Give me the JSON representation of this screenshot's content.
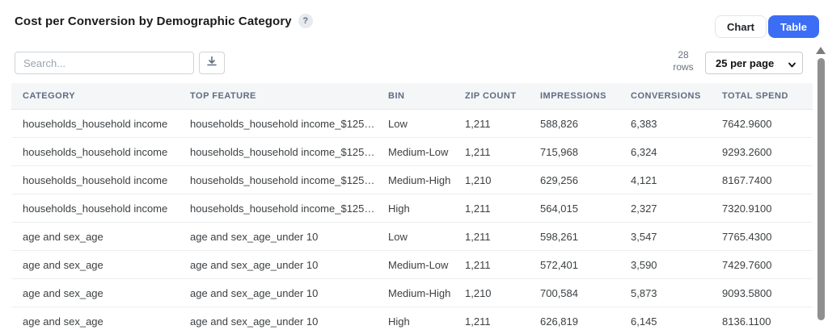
{
  "header": {
    "title": "Cost per Conversion by Demographic Category",
    "help_icon": "?",
    "chart_button_label": "Chart",
    "table_button_label": "Table"
  },
  "toolbar": {
    "search_placeholder": "Search...",
    "download_icon": "download-icon",
    "rows_count_number": "28",
    "rows_count_label": "rows",
    "page_size_selected": "25 per page"
  },
  "colors": {
    "active_toggle_blue": "#3b6ef5",
    "table_header_bg": "#f4f6f8",
    "table_header_text": "#5f6d81",
    "row_border": "#eceef1",
    "scroll_thumb": "#8f8f8f"
  },
  "table": {
    "columns": [
      "CATEGORY",
      "TOP FEATURE",
      "BIN",
      "ZIP COUNT",
      "IMPRESSIONS",
      "CONVERSIONS",
      "TOTAL SPEND"
    ],
    "rows": [
      [
        "households_household income",
        "households_household income_$125,…",
        "Low",
        "1,211",
        "588,826",
        "6,383",
        "7642.9600"
      ],
      [
        "households_household income",
        "households_household income_$125,…",
        "Medium-Low",
        "1,211",
        "715,968",
        "6,324",
        "9293.2600"
      ],
      [
        "households_household income",
        "households_household income_$125,…",
        "Medium-High",
        "1,210",
        "629,256",
        "4,121",
        "8167.7400"
      ],
      [
        "households_household income",
        "households_household income_$125,…",
        "High",
        "1,211",
        "564,015",
        "2,327",
        "7320.9100"
      ],
      [
        "age and sex_age",
        "age and sex_age_under 10",
        "Low",
        "1,211",
        "598,261",
        "3,547",
        "7765.4300"
      ],
      [
        "age and sex_age",
        "age and sex_age_under 10",
        "Medium-Low",
        "1,211",
        "572,401",
        "3,590",
        "7429.7600"
      ],
      [
        "age and sex_age",
        "age and sex_age_under 10",
        "Medium-High",
        "1,210",
        "700,584",
        "5,873",
        "9093.5800"
      ],
      [
        "age and sex_age",
        "age and sex_age_under 10",
        "High",
        "1,211",
        "626,819",
        "6,145",
        "8136.1100"
      ]
    ]
  }
}
